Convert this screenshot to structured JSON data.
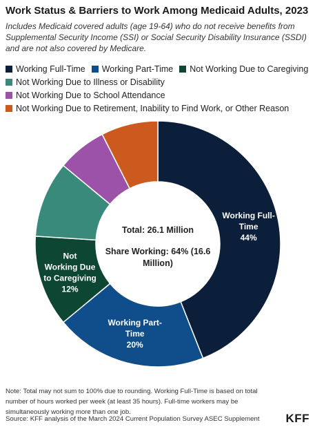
{
  "header": {
    "title": "Work Status & Barriers to Work Among Medicaid Adults, 2023",
    "subtitle": "Includes Medicaid covered adults (age 19-64) who do not receive benefits from Supplemental Security Income (SSI) or Social Security Disability Insurance (SSDI) and are not also covered by Medicare."
  },
  "legend": {
    "rows": [
      [
        {
          "label": "Working Full-Time",
          "color": "#0b1f3a"
        },
        {
          "label": "Working Part-Time",
          "color": "#104e8b"
        },
        {
          "label": "Not Working Due to Caregiving",
          "color": "#0d4733"
        }
      ],
      [
        {
          "label": "Not Working Due to Illness or Disability",
          "color": "#3a8a7b"
        }
      ],
      [
        {
          "label": "Not Working Due to School Attendance",
          "color": "#9b52a8"
        }
      ],
      [
        {
          "label": "Not Working Due to Retirement, Inability to Find Work, or Other Reason",
          "color": "#cc5a1e"
        }
      ]
    ]
  },
  "center": {
    "total": "Total: 26.1 Million",
    "share_line1": "Share Working: 64% (16.6",
    "share_line2": "Million)"
  },
  "chart_data": {
    "type": "pie",
    "donut": true,
    "series": [
      {
        "name": "Working Full-Time",
        "value": 44,
        "color": "#0b1f3a",
        "label_lines": [
          "Working Full-",
          "Time",
          "44%"
        ]
      },
      {
        "name": "Working Part-Time",
        "value": 20,
        "color": "#104e8b",
        "label_lines": [
          "Working Part-",
          "Time",
          "20%"
        ]
      },
      {
        "name": "Not Working Due to Caregiving",
        "value": 12,
        "color": "#0d4733",
        "label_lines": [
          "Not",
          "Working Due",
          "to Caregiving",
          "12%"
        ]
      },
      {
        "name": "Not Working Due to Illness or Disability",
        "value": 10,
        "color": "#3a8a7b",
        "label_lines": []
      },
      {
        "name": "Not Working Due to School Attendance",
        "value": 6.5,
        "color": "#9b52a8",
        "label_lines": []
      },
      {
        "name": "Not Working Due to Retirement, Inability to Find Work, or Other Reason",
        "value": 7.5,
        "color": "#cc5a1e",
        "label_lines": []
      }
    ]
  },
  "footer": {
    "note_line1": "Note: Total may not sum to 100% due to rounding. Working Full-Time is based on total",
    "note_line2": "number of hours worked per week (at least 35 hours). Full-time workers may be",
    "note_line3": "simultaneously working more than one job.",
    "source": "Source: KFF analysis of the March 2024 Current Population Survey ASEC Supplement",
    "logo": "KFF"
  }
}
